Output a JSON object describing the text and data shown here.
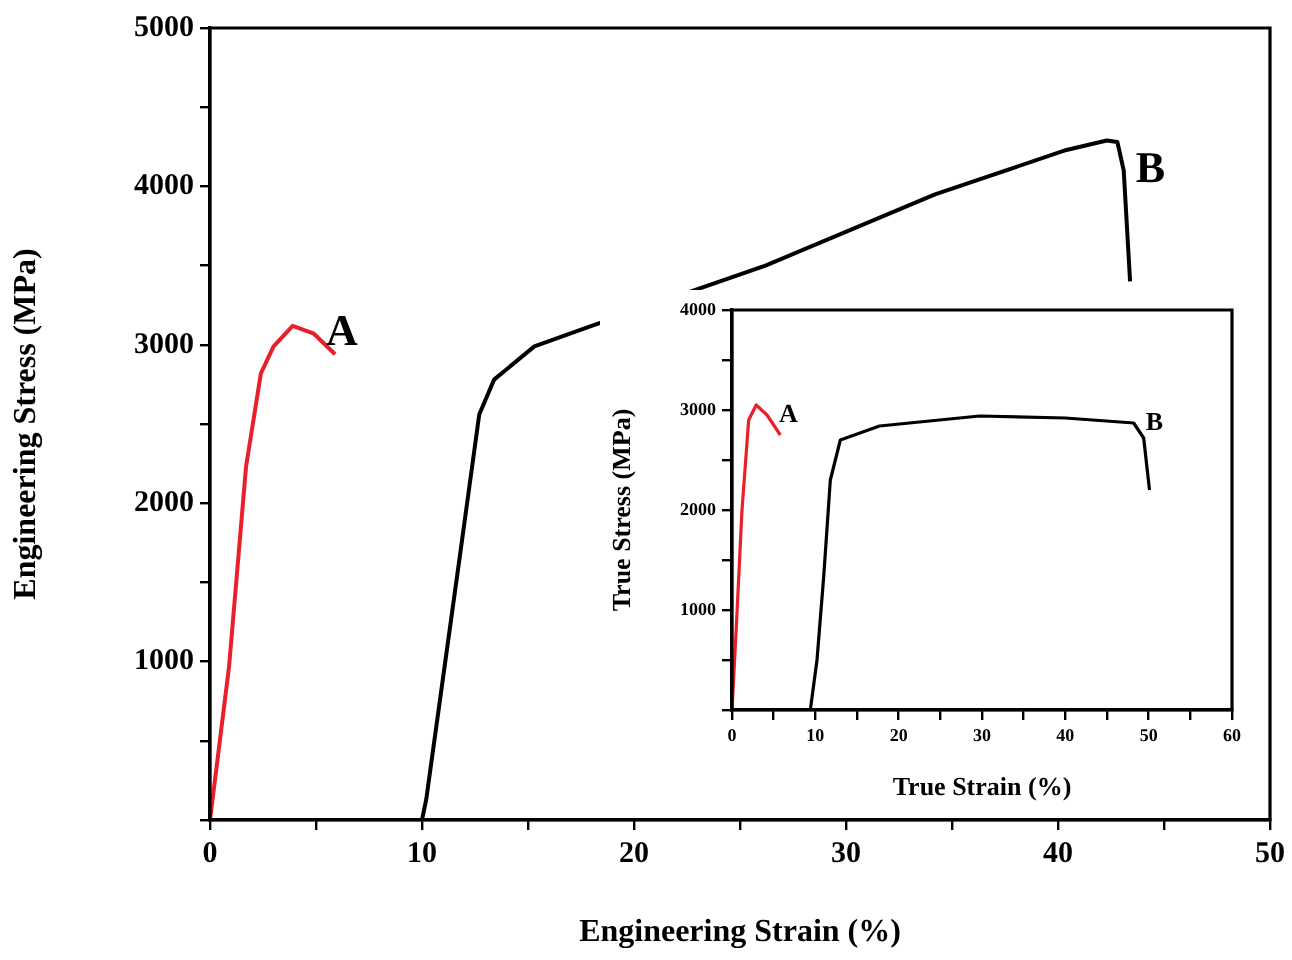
{
  "chart_data": [
    {
      "type": "line",
      "xlabel": "Engineering Strain (%)",
      "ylabel": "Engineering Stress (MPa)",
      "xlim": [
        0,
        50
      ],
      "ylim": [
        0,
        5000
      ],
      "xticks": [
        0,
        {
          "value": 5,
          "label": null
        },
        10,
        {
          "value": 15,
          "label": null
        },
        20,
        {
          "value": 25,
          "label": null
        },
        30,
        {
          "value": 35,
          "label": null
        },
        40,
        {
          "value": 45,
          "label": null
        },
        50
      ],
      "yticks": [
        {
          "value": 0,
          "label": null
        },
        {
          "value": 500,
          "label": null
        },
        1000,
        {
          "value": 1500,
          "label": null
        },
        2000,
        {
          "value": 2500,
          "label": null
        },
        3000,
        {
          "value": 3500,
          "label": null
        },
        4000,
        {
          "value": 4500,
          "label": null
        },
        5000
      ],
      "grid": false,
      "legend": false,
      "marker": "none",
      "line_style": "solid",
      "series": [
        {
          "name": "A",
          "color": "#e8202a",
          "x": [
            0,
            0.9,
            1.7,
            2.4,
            3.0,
            3.9,
            4.9,
            5.9
          ],
          "values": [
            0,
            970,
            2230,
            2820,
            2990,
            3120,
            3070,
            2940
          ]
        },
        {
          "name": "B",
          "color": "#000000",
          "x": [
            10,
            10.2,
            11.8,
            12.7,
            13.4,
            15.3,
            18,
            26.2,
            34.2,
            40.4,
            42.3,
            42.8,
            43.1,
            43.4
          ],
          "values": [
            0,
            130,
            1680,
            2560,
            2780,
            2990,
            3120,
            3500,
            3950,
            4230,
            4290,
            4280,
            4100,
            3400
          ]
        }
      ]
    },
    {
      "type": "line",
      "xlabel": "True Strain (%)",
      "ylabel": "True Stress (MPa)",
      "xlim": [
        0,
        60
      ],
      "ylim": [
        0,
        4000
      ],
      "xticks": [
        0,
        {
          "value": 5,
          "label": null
        },
        10,
        {
          "value": 15,
          "label": null
        },
        20,
        {
          "value": 25,
          "label": null
        },
        30,
        {
          "value": 35,
          "label": null
        },
        40,
        {
          "value": 45,
          "label": null
        },
        50,
        {
          "value": 55,
          "label": null
        },
        60
      ],
      "yticks": [
        {
          "value": 0,
          "label": null
        },
        {
          "value": 500,
          "label": null
        },
        1000,
        {
          "value": 1500,
          "label": null
        },
        2000,
        {
          "value": 2500,
          "label": null
        },
        3000,
        {
          "value": 3500,
          "label": null
        },
        4000
      ],
      "grid": false,
      "legend": false,
      "marker": "none",
      "line_style": "solid",
      "series": [
        {
          "name": "A",
          "color": "#e8202a",
          "x": [
            0,
            0.5,
            1.2,
            2.0,
            2.9,
            4.2,
            5.8
          ],
          "values": [
            0,
            800,
            2000,
            2900,
            3050,
            2950,
            2750
          ]
        },
        {
          "name": "B",
          "color": "#000000",
          "x": [
            9.4,
            10.2,
            11,
            11.8,
            13,
            17.7,
            29.7,
            40,
            48.2,
            49.4,
            50.1
          ],
          "values": [
            0,
            500,
            1330,
            2300,
            2700,
            2840,
            2940,
            2920,
            2870,
            2720,
            2200
          ]
        }
      ]
    }
  ]
}
